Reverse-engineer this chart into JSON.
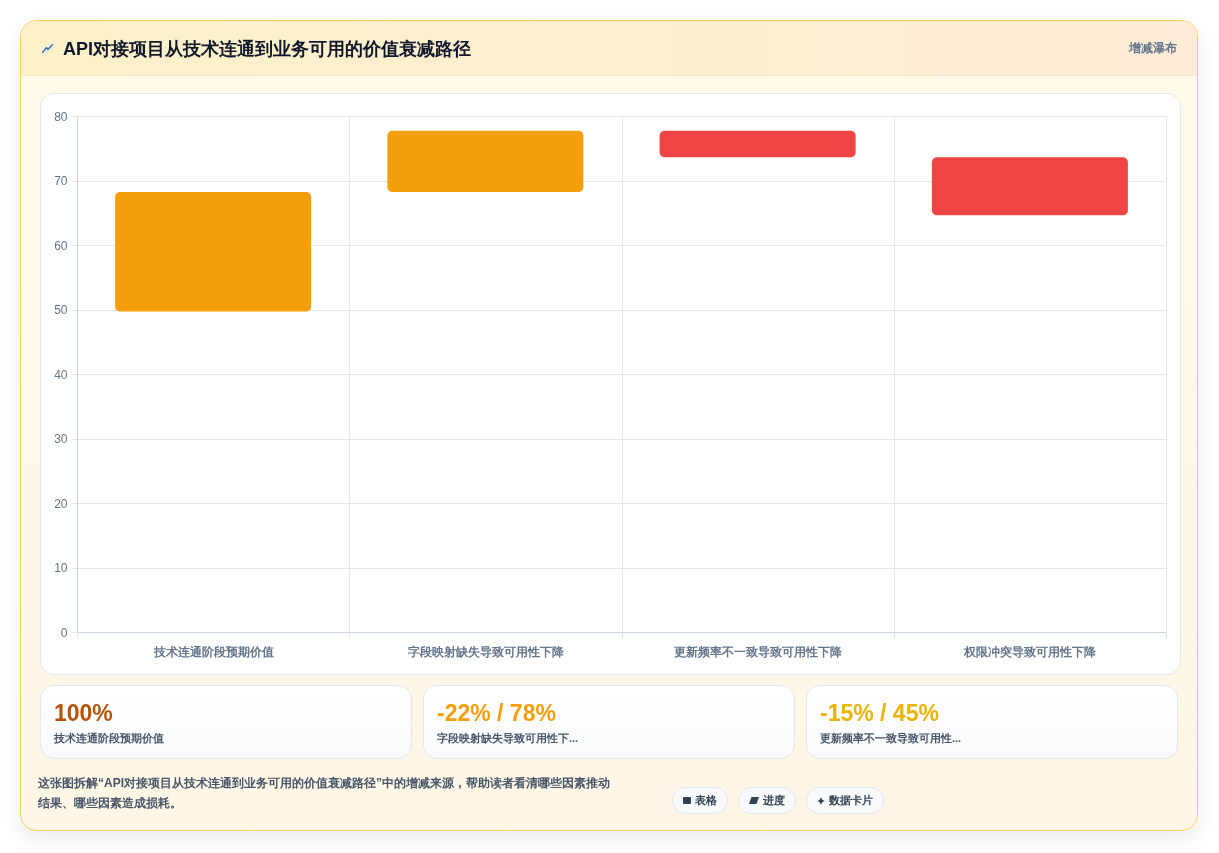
{
  "chart_data": [
    {
      "type": "bar",
      "title": "API对接项目从技术连通到业务可用的价值衰减路径",
      "categories": [
        "技术连通阶段预期价值",
        "字段映射缺失导致可用性下降",
        "更新频率不一致导致可用性下降",
        "权限冲突导致可用性下降"
      ],
      "base": [
        49.7,
        68.2,
        77.7,
        73.6
      ],
      "values": [
        18.5,
        9.5,
        -4.1,
        -9.0
      ],
      "colors": [
        "#f59e0b",
        "#f59e0b",
        "#ef4444",
        "#ef4444"
      ],
      "ylim": [
        0,
        80
      ],
      "yticks": [
        0,
        10,
        20,
        30,
        40,
        50,
        60,
        70,
        80
      ],
      "grid": true,
      "annotations": [
        "增减瀑布",
        "这张图拆解“API对接项目从技术连通到业务可用的价值衰减路径”中的增减来源，帮助读者看清哪些因素推动结果、哪些因素造成损耗。",
        "表格",
        "进度",
        "数据卡片"
      ]
    },
    {
      "type": "other",
      "title": "100%",
      "subtitle": "技术连通阶段预期价值",
      "color": "#b45309"
    },
    {
      "type": "other",
      "title": "-22% / 78%",
      "subtitle": "字段映射缺失导致可用性下...",
      "color": "#f59e0b"
    },
    {
      "type": "other",
      "title": "-15% / 45%",
      "subtitle": "更新频率不一致导致可用性...",
      "color": "#eab308"
    }
  ]
}
